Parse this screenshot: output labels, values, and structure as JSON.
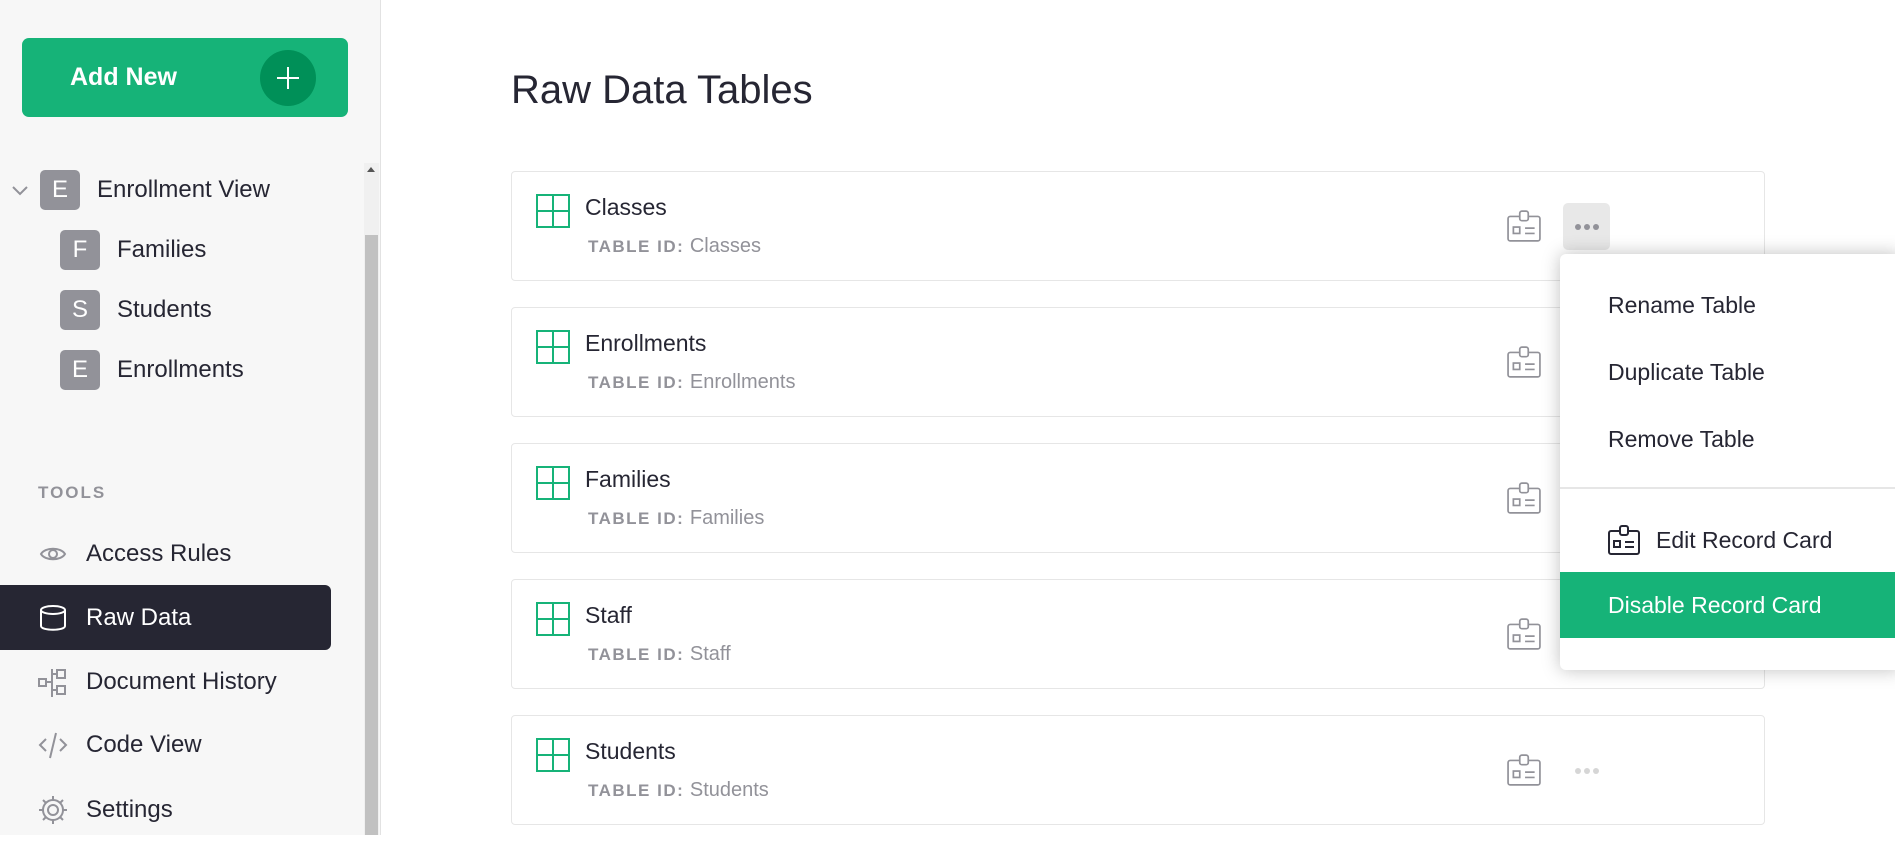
{
  "sidebar": {
    "add_new": "Add New",
    "pages": [
      {
        "initial": "E",
        "label": "Enrollment View"
      },
      {
        "initial": "F",
        "label": "Families"
      },
      {
        "initial": "S",
        "label": "Students"
      },
      {
        "initial": "E",
        "label": "Enrollments"
      }
    ],
    "tools_heading": "TOOLS",
    "tools": [
      {
        "icon": "eye-icon",
        "label": "Access Rules"
      },
      {
        "icon": "database-icon",
        "label": "Raw Data",
        "active": true
      },
      {
        "icon": "history-icon",
        "label": "Document History"
      },
      {
        "icon": "code-icon",
        "label": "Code View"
      },
      {
        "icon": "gear-icon",
        "label": "Settings"
      }
    ]
  },
  "main": {
    "title": "Raw Data Tables",
    "table_id_label": "TABLE ID:",
    "tables": [
      {
        "name": "Classes",
        "id": "Classes"
      },
      {
        "name": "Enrollments",
        "id": "Enrollments"
      },
      {
        "name": "Families",
        "id": "Families"
      },
      {
        "name": "Staff",
        "id": "Staff"
      },
      {
        "name": "Students",
        "id": "Students"
      }
    ]
  },
  "menu": {
    "items": [
      "Rename Table",
      "Duplicate Table",
      "Remove Table",
      "Edit Record Card",
      "Disable Record Card"
    ],
    "highlighted": "Disable Record Card"
  },
  "colors": {
    "accent": "#16b378",
    "accent_dark": "#009058",
    "active_nav": "#262633"
  }
}
